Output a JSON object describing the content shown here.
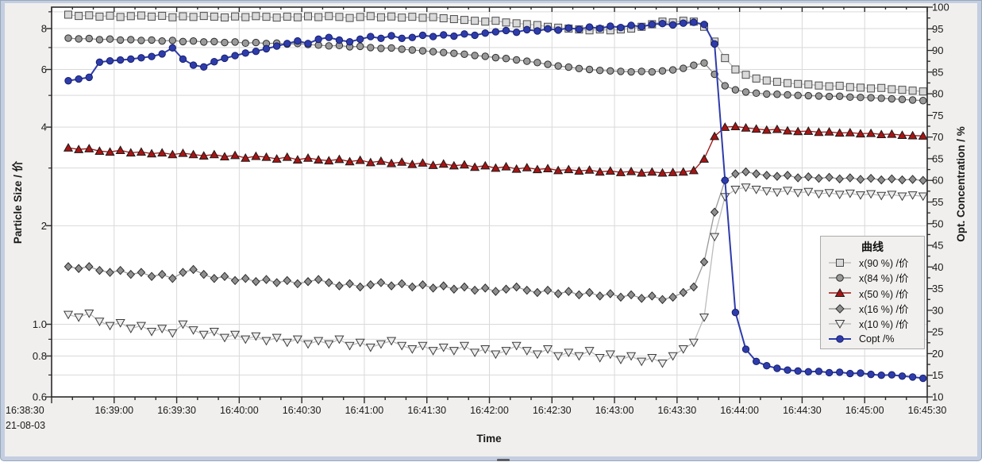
{
  "window": {
    "frame_color": "#c3cee1",
    "panel_bg": "#f0efed",
    "plot_bg": "#ffffff",
    "grid_color": "#d9d9d9",
    "axis_color": "#2b2b2b"
  },
  "chart_data": {
    "type": "line",
    "xlabel": "Time",
    "date_label": "21-08-03",
    "ylabel_left": "Particle Size / 价",
    "ylabel_right": "Opt. Concentration / %",
    "legend_title": "曲线",
    "x_axis": {
      "start_time": "16:38:30",
      "end_time": "16:45:30",
      "range_seconds": [
        0,
        420
      ],
      "major_step_s": 30,
      "minor_step_s": 10,
      "tick_labels": [
        "16:38:30",
        "16:39:00",
        "16:39:30",
        "16:40:00",
        "16:40:30",
        "16:41:00",
        "16:41:30",
        "16:42:00",
        "16:42:30",
        "16:43:00",
        "16:43:30",
        "16:44:00",
        "16:44:30",
        "16:45:00",
        "16:45:30"
      ]
    },
    "y_left": {
      "scale": "log",
      "min": 0.6,
      "max": 9.3,
      "ticks": [
        {
          "v": 8,
          "label": "8"
        },
        {
          "v": 6,
          "label": "6"
        },
        {
          "v": 4,
          "label": "4"
        },
        {
          "v": 2,
          "label": "2"
        },
        {
          "v": 1,
          "label": "1.0"
        },
        {
          "v": 0.8,
          "label": "0.8"
        },
        {
          "v": 0.6,
          "label": "0.6"
        }
      ],
      "grid_values": [
        0.7,
        0.8,
        0.9,
        1,
        2,
        3,
        4,
        5,
        6,
        7,
        8,
        9
      ],
      "minor_tick_values": [
        0.7,
        0.9,
        3,
        5,
        7,
        9
      ]
    },
    "y_right": {
      "scale": "linear",
      "min": 10,
      "max": 100,
      "major_step": 5,
      "minor_step": 2.5,
      "labels": [
        "100",
        "95",
        "90",
        "85",
        "80",
        "75",
        "70",
        "65",
        "60",
        "55",
        "50",
        "45",
        "40",
        "35",
        "30",
        "25",
        "20",
        "15",
        "10"
      ]
    },
    "time_start_s": 8,
    "time_step_s": 5,
    "series": [
      {
        "name": "x90",
        "label": "x(90 %) /价",
        "axis": "left",
        "marker": "square",
        "fill": "#d9d9d9",
        "edge": "#4a4a4a",
        "line_color": "#bcbcbc",
        "values": [
          8.82,
          8.74,
          8.78,
          8.7,
          8.76,
          8.68,
          8.73,
          8.77,
          8.7,
          8.75,
          8.66,
          8.72,
          8.68,
          8.74,
          8.7,
          8.65,
          8.71,
          8.67,
          8.73,
          8.69,
          8.64,
          8.7,
          8.66,
          8.72,
          8.67,
          8.73,
          8.68,
          8.62,
          8.68,
          8.73,
          8.66,
          8.71,
          8.64,
          8.69,
          8.63,
          8.67,
          8.6,
          8.55,
          8.5,
          8.45,
          8.4,
          8.45,
          8.35,
          8.3,
          8.25,
          8.2,
          8.1,
          8.05,
          8.0,
          7.95,
          7.9,
          7.95,
          7.9,
          7.95,
          8.0,
          8.1,
          8.25,
          8.4,
          8.35,
          8.45,
          8.4,
          8.1,
          7.3,
          6.5,
          6.0,
          5.78,
          5.63,
          5.55,
          5.5,
          5.45,
          5.42,
          5.4,
          5.36,
          5.33,
          5.35,
          5.3,
          5.28,
          5.25,
          5.27,
          5.22,
          5.2,
          5.17,
          5.14
        ]
      },
      {
        "name": "x84",
        "label": "x(84 %) /价",
        "axis": "left",
        "marker": "circle",
        "fill": "#9a9a9a",
        "edge": "#2c2c2c",
        "line_color": "#8e8e8e",
        "values": [
          7.48,
          7.44,
          7.46,
          7.4,
          7.43,
          7.38,
          7.4,
          7.36,
          7.38,
          7.33,
          7.36,
          7.3,
          7.33,
          7.28,
          7.3,
          7.25,
          7.28,
          7.22,
          7.25,
          7.2,
          7.22,
          7.17,
          7.2,
          7.15,
          7.12,
          7.08,
          7.1,
          7.04,
          7.06,
          7.0,
          6.96,
          6.98,
          6.92,
          6.88,
          6.84,
          6.8,
          6.76,
          6.72,
          6.68,
          6.62,
          6.58,
          6.52,
          6.48,
          6.42,
          6.36,
          6.3,
          6.22,
          6.15,
          6.1,
          6.04,
          6.0,
          5.96,
          5.94,
          5.92,
          5.9,
          5.92,
          5.9,
          5.94,
          5.98,
          6.05,
          6.18,
          6.28,
          5.8,
          5.35,
          5.2,
          5.12,
          5.08,
          5.05,
          5.04,
          5.02,
          5.0,
          4.99,
          4.98,
          4.96,
          4.97,
          4.94,
          4.93,
          4.92,
          4.9,
          4.88,
          4.86,
          4.84,
          4.82
        ]
      },
      {
        "name": "x50",
        "label": "x(50 %) /价",
        "axis": "left",
        "marker": "triangle-up",
        "fill": "#a81414",
        "edge": "#1a1a1a",
        "line_color": "#9e1212",
        "values": [
          3.46,
          3.42,
          3.44,
          3.38,
          3.36,
          3.4,
          3.34,
          3.36,
          3.32,
          3.34,
          3.3,
          3.33,
          3.3,
          3.27,
          3.3,
          3.25,
          3.28,
          3.22,
          3.26,
          3.24,
          3.2,
          3.24,
          3.18,
          3.22,
          3.18,
          3.16,
          3.19,
          3.14,
          3.17,
          3.12,
          3.15,
          3.1,
          3.13,
          3.08,
          3.11,
          3.06,
          3.09,
          3.05,
          3.07,
          3.02,
          3.05,
          3.0,
          3.03,
          2.98,
          3.01,
          2.97,
          2.99,
          2.95,
          2.97,
          2.94,
          2.96,
          2.92,
          2.94,
          2.91,
          2.93,
          2.9,
          2.92,
          2.9,
          2.91,
          2.92,
          2.95,
          3.2,
          3.75,
          4.0,
          4.02,
          3.98,
          3.95,
          3.92,
          3.94,
          3.9,
          3.88,
          3.89,
          3.86,
          3.87,
          3.84,
          3.85,
          3.82,
          3.83,
          3.8,
          3.81,
          3.78,
          3.77,
          3.76
        ]
      },
      {
        "name": "x16",
        "label": "x(16 %) /价",
        "axis": "left",
        "marker": "diamond",
        "fill": "#8f8f8f",
        "edge": "#2c2c2c",
        "line_color": "#999999",
        "values": [
          1.5,
          1.48,
          1.5,
          1.46,
          1.44,
          1.46,
          1.42,
          1.44,
          1.4,
          1.42,
          1.38,
          1.44,
          1.47,
          1.42,
          1.38,
          1.4,
          1.36,
          1.38,
          1.35,
          1.37,
          1.34,
          1.36,
          1.33,
          1.35,
          1.37,
          1.34,
          1.31,
          1.33,
          1.3,
          1.32,
          1.34,
          1.31,
          1.33,
          1.3,
          1.32,
          1.29,
          1.31,
          1.28,
          1.3,
          1.27,
          1.29,
          1.26,
          1.28,
          1.3,
          1.27,
          1.25,
          1.27,
          1.24,
          1.26,
          1.23,
          1.25,
          1.22,
          1.24,
          1.21,
          1.23,
          1.2,
          1.22,
          1.19,
          1.21,
          1.25,
          1.3,
          1.55,
          2.2,
          2.75,
          2.88,
          2.92,
          2.88,
          2.85,
          2.83,
          2.85,
          2.8,
          2.82,
          2.79,
          2.81,
          2.78,
          2.8,
          2.77,
          2.79,
          2.76,
          2.78,
          2.76,
          2.77,
          2.75
        ]
      },
      {
        "name": "x10",
        "label": "x(10 %) /价",
        "axis": "left",
        "marker": "triangle-down",
        "fill": "#ececec",
        "edge": "#3d3d3d",
        "line_color": "#bcbcbc",
        "values": [
          1.07,
          1.05,
          1.08,
          1.02,
          0.99,
          1.01,
          0.97,
          0.99,
          0.95,
          0.97,
          0.94,
          1.0,
          0.96,
          0.93,
          0.95,
          0.91,
          0.93,
          0.9,
          0.92,
          0.89,
          0.91,
          0.88,
          0.9,
          0.87,
          0.89,
          0.87,
          0.9,
          0.86,
          0.88,
          0.85,
          0.87,
          0.89,
          0.86,
          0.84,
          0.86,
          0.83,
          0.85,
          0.83,
          0.86,
          0.82,
          0.84,
          0.81,
          0.83,
          0.86,
          0.83,
          0.81,
          0.84,
          0.8,
          0.82,
          0.8,
          0.83,
          0.79,
          0.81,
          0.78,
          0.8,
          0.77,
          0.79,
          0.76,
          0.8,
          0.84,
          0.88,
          1.05,
          1.85,
          2.45,
          2.58,
          2.62,
          2.58,
          2.55,
          2.53,
          2.56,
          2.52,
          2.54,
          2.5,
          2.52,
          2.49,
          2.51,
          2.48,
          2.5,
          2.47,
          2.49,
          2.46,
          2.48,
          2.46
        ]
      },
      {
        "name": "copt",
        "label": "Copt /%",
        "axis": "right",
        "marker": "circle",
        "fill": "#2e3cab",
        "edge": "#17206b",
        "line_color": "#2e3cab",
        "values": [
          83.0,
          83.4,
          83.8,
          87.3,
          87.6,
          87.8,
          88.0,
          88.3,
          88.6,
          89.2,
          90.6,
          88.0,
          86.6,
          86.2,
          87.4,
          88.2,
          88.8,
          89.4,
          89.8,
          90.4,
          91.0,
          91.6,
          92.2,
          91.6,
          92.6,
          93.0,
          92.4,
          92.0,
          92.6,
          93.2,
          92.8,
          93.4,
          92.8,
          93.0,
          93.5,
          93.2,
          93.6,
          93.3,
          93.8,
          93.5,
          94.0,
          94.3,
          94.6,
          94.2,
          94.8,
          94.5,
          95.0,
          94.7,
          95.2,
          94.9,
          95.4,
          95.1,
          95.6,
          95.3,
          95.8,
          95.5,
          96.0,
          96.2,
          95.9,
          96.3,
          96.5,
          96.0,
          91.5,
          60.0,
          29.5,
          21.0,
          18.2,
          17.2,
          16.6,
          16.2,
          16.0,
          15.8,
          15.9,
          15.6,
          15.7,
          15.4,
          15.5,
          15.2,
          15.0,
          15.1,
          14.8,
          14.6,
          14.3
        ]
      }
    ]
  }
}
